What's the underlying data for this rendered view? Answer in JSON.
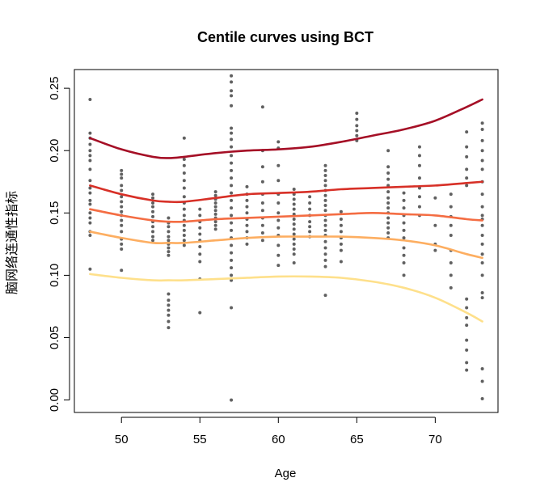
{
  "chart_data": {
    "type": "scatter",
    "title": "Centile curves using BCT",
    "xlabel": "Age",
    "ylabel": "脑网络连通性指标",
    "xlim": [
      47,
      74
    ],
    "ylim": [
      -0.01,
      0.265
    ],
    "x_ticks": [
      "50",
      "55",
      "60",
      "65",
      "70"
    ],
    "y_ticks": [
      "0.00",
      "0.05",
      "0.10",
      "0.15",
      "0.20",
      "0.25"
    ],
    "point_color": "#606060",
    "grid": false,
    "legend": "none",
    "points": [
      {
        "x": 48,
        "y": 0.241
      },
      {
        "x": 48,
        "y": 0.214
      },
      {
        "x": 48,
        "y": 0.21
      },
      {
        "x": 48,
        "y": 0.205
      },
      {
        "x": 48,
        "y": 0.2
      },
      {
        "x": 48,
        "y": 0.196
      },
      {
        "x": 48,
        "y": 0.192
      },
      {
        "x": 48,
        "y": 0.185
      },
      {
        "x": 48,
        "y": 0.176
      },
      {
        "x": 48,
        "y": 0.17
      },
      {
        "x": 48,
        "y": 0.166
      },
      {
        "x": 48,
        "y": 0.16
      },
      {
        "x": 48,
        "y": 0.157
      },
      {
        "x": 48,
        "y": 0.15
      },
      {
        "x": 48,
        "y": 0.146
      },
      {
        "x": 48,
        "y": 0.142
      },
      {
        "x": 48,
        "y": 0.135
      },
      {
        "x": 48,
        "y": 0.132
      },
      {
        "x": 48,
        "y": 0.105
      },
      {
        "x": 50,
        "y": 0.184
      },
      {
        "x": 50,
        "y": 0.181
      },
      {
        "x": 50,
        "y": 0.178
      },
      {
        "x": 50,
        "y": 0.172
      },
      {
        "x": 50,
        "y": 0.168
      },
      {
        "x": 50,
        "y": 0.163
      },
      {
        "x": 50,
        "y": 0.159
      },
      {
        "x": 50,
        "y": 0.155
      },
      {
        "x": 50,
        "y": 0.151
      },
      {
        "x": 50,
        "y": 0.148
      },
      {
        "x": 50,
        "y": 0.144
      },
      {
        "x": 50,
        "y": 0.14
      },
      {
        "x": 50,
        "y": 0.135
      },
      {
        "x": 50,
        "y": 0.129
      },
      {
        "x": 50,
        "y": 0.125
      },
      {
        "x": 50,
        "y": 0.121
      },
      {
        "x": 50,
        "y": 0.104
      },
      {
        "x": 52,
        "y": 0.165
      },
      {
        "x": 52,
        "y": 0.162
      },
      {
        "x": 52,
        "y": 0.158
      },
      {
        "x": 52,
        "y": 0.155
      },
      {
        "x": 52,
        "y": 0.151
      },
      {
        "x": 52,
        "y": 0.147
      },
      {
        "x": 52,
        "y": 0.143
      },
      {
        "x": 52,
        "y": 0.139
      },
      {
        "x": 52,
        "y": 0.135
      },
      {
        "x": 52,
        "y": 0.131
      },
      {
        "x": 52,
        "y": 0.128
      },
      {
        "x": 53,
        "y": 0.146
      },
      {
        "x": 53,
        "y": 0.142
      },
      {
        "x": 53,
        "y": 0.139
      },
      {
        "x": 53,
        "y": 0.135
      },
      {
        "x": 53,
        "y": 0.131
      },
      {
        "x": 53,
        "y": 0.128
      },
      {
        "x": 53,
        "y": 0.125
      },
      {
        "x": 53,
        "y": 0.122
      },
      {
        "x": 53,
        "y": 0.119
      },
      {
        "x": 53,
        "y": 0.116
      },
      {
        "x": 53,
        "y": 0.085
      },
      {
        "x": 53,
        "y": 0.08
      },
      {
        "x": 53,
        "y": 0.076
      },
      {
        "x": 53,
        "y": 0.072
      },
      {
        "x": 53,
        "y": 0.068
      },
      {
        "x": 53,
        "y": 0.063
      },
      {
        "x": 53,
        "y": 0.058
      },
      {
        "x": 54,
        "y": 0.21
      },
      {
        "x": 54,
        "y": 0.193
      },
      {
        "x": 54,
        "y": 0.188
      },
      {
        "x": 54,
        "y": 0.182
      },
      {
        "x": 54,
        "y": 0.176
      },
      {
        "x": 54,
        "y": 0.17
      },
      {
        "x": 54,
        "y": 0.163
      },
      {
        "x": 54,
        "y": 0.158
      },
      {
        "x": 54,
        "y": 0.153
      },
      {
        "x": 54,
        "y": 0.148
      },
      {
        "x": 54,
        "y": 0.144
      },
      {
        "x": 54,
        "y": 0.14
      },
      {
        "x": 54,
        "y": 0.136
      },
      {
        "x": 54,
        "y": 0.132
      },
      {
        "x": 54,
        "y": 0.128
      },
      {
        "x": 54,
        "y": 0.124
      },
      {
        "x": 55,
        "y": 0.153
      },
      {
        "x": 55,
        "y": 0.148
      },
      {
        "x": 55,
        "y": 0.143
      },
      {
        "x": 55,
        "y": 0.138
      },
      {
        "x": 55,
        "y": 0.133
      },
      {
        "x": 55,
        "y": 0.128
      },
      {
        "x": 55,
        "y": 0.123
      },
      {
        "x": 55,
        "y": 0.117
      },
      {
        "x": 55,
        "y": 0.111
      },
      {
        "x": 55,
        "y": 0.097
      },
      {
        "x": 55,
        "y": 0.07
      },
      {
        "x": 56,
        "y": 0.167
      },
      {
        "x": 56,
        "y": 0.164
      },
      {
        "x": 56,
        "y": 0.161
      },
      {
        "x": 56,
        "y": 0.158
      },
      {
        "x": 56,
        "y": 0.155
      },
      {
        "x": 56,
        "y": 0.152
      },
      {
        "x": 56,
        "y": 0.149
      },
      {
        "x": 56,
        "y": 0.146
      },
      {
        "x": 56,
        "y": 0.143
      },
      {
        "x": 56,
        "y": 0.14
      },
      {
        "x": 56,
        "y": 0.137
      },
      {
        "x": 57,
        "y": 0.26
      },
      {
        "x": 57,
        "y": 0.255
      },
      {
        "x": 57,
        "y": 0.248
      },
      {
        "x": 57,
        "y": 0.244
      },
      {
        "x": 57,
        "y": 0.236
      },
      {
        "x": 57,
        "y": 0.218
      },
      {
        "x": 57,
        "y": 0.214
      },
      {
        "x": 57,
        "y": 0.209
      },
      {
        "x": 57,
        "y": 0.203
      },
      {
        "x": 57,
        "y": 0.196
      },
      {
        "x": 57,
        "y": 0.19
      },
      {
        "x": 57,
        "y": 0.184
      },
      {
        "x": 57,
        "y": 0.178
      },
      {
        "x": 57,
        "y": 0.172
      },
      {
        "x": 57,
        "y": 0.166
      },
      {
        "x": 57,
        "y": 0.16
      },
      {
        "x": 57,
        "y": 0.154
      },
      {
        "x": 57,
        "y": 0.148
      },
      {
        "x": 57,
        "y": 0.142
      },
      {
        "x": 57,
        "y": 0.136
      },
      {
        "x": 57,
        "y": 0.13
      },
      {
        "x": 57,
        "y": 0.124
      },
      {
        "x": 57,
        "y": 0.118
      },
      {
        "x": 57,
        "y": 0.112
      },
      {
        "x": 57,
        "y": 0.106
      },
      {
        "x": 57,
        "y": 0.1
      },
      {
        "x": 57,
        "y": 0.096
      },
      {
        "x": 57,
        "y": 0.074
      },
      {
        "x": 57,
        "y": 0.0
      },
      {
        "x": 58,
        "y": 0.171
      },
      {
        "x": 58,
        "y": 0.165
      },
      {
        "x": 58,
        "y": 0.16
      },
      {
        "x": 58,
        "y": 0.155
      },
      {
        "x": 58,
        "y": 0.15
      },
      {
        "x": 58,
        "y": 0.145
      },
      {
        "x": 58,
        "y": 0.14
      },
      {
        "x": 58,
        "y": 0.135
      },
      {
        "x": 58,
        "y": 0.13
      },
      {
        "x": 58,
        "y": 0.125
      },
      {
        "x": 59,
        "y": 0.235
      },
      {
        "x": 59,
        "y": 0.2
      },
      {
        "x": 59,
        "y": 0.187
      },
      {
        "x": 59,
        "y": 0.175
      },
      {
        "x": 59,
        "y": 0.165
      },
      {
        "x": 59,
        "y": 0.158
      },
      {
        "x": 59,
        "y": 0.152
      },
      {
        "x": 59,
        "y": 0.146
      },
      {
        "x": 59,
        "y": 0.14
      },
      {
        "x": 59,
        "y": 0.134
      },
      {
        "x": 59,
        "y": 0.128
      },
      {
        "x": 60,
        "y": 0.207
      },
      {
        "x": 60,
        "y": 0.202
      },
      {
        "x": 60,
        "y": 0.188
      },
      {
        "x": 60,
        "y": 0.176
      },
      {
        "x": 60,
        "y": 0.165
      },
      {
        "x": 60,
        "y": 0.158
      },
      {
        "x": 60,
        "y": 0.15
      },
      {
        "x": 60,
        "y": 0.144
      },
      {
        "x": 60,
        "y": 0.138
      },
      {
        "x": 60,
        "y": 0.132
      },
      {
        "x": 60,
        "y": 0.124
      },
      {
        "x": 60,
        "y": 0.116
      },
      {
        "x": 60,
        "y": 0.108
      },
      {
        "x": 61,
        "y": 0.169
      },
      {
        "x": 61,
        "y": 0.165
      },
      {
        "x": 61,
        "y": 0.161
      },
      {
        "x": 61,
        "y": 0.157
      },
      {
        "x": 61,
        "y": 0.153
      },
      {
        "x": 61,
        "y": 0.149
      },
      {
        "x": 61,
        "y": 0.145
      },
      {
        "x": 61,
        "y": 0.141
      },
      {
        "x": 61,
        "y": 0.137
      },
      {
        "x": 61,
        "y": 0.133
      },
      {
        "x": 61,
        "y": 0.129
      },
      {
        "x": 61,
        "y": 0.125
      },
      {
        "x": 61,
        "y": 0.121
      },
      {
        "x": 61,
        "y": 0.117
      },
      {
        "x": 61,
        "y": 0.11
      },
      {
        "x": 62,
        "y": 0.163
      },
      {
        "x": 62,
        "y": 0.158
      },
      {
        "x": 62,
        "y": 0.153
      },
      {
        "x": 62,
        "y": 0.148
      },
      {
        "x": 62,
        "y": 0.143
      },
      {
        "x": 62,
        "y": 0.139
      },
      {
        "x": 62,
        "y": 0.135
      },
      {
        "x": 62,
        "y": 0.131
      },
      {
        "x": 63,
        "y": 0.188
      },
      {
        "x": 63,
        "y": 0.184
      },
      {
        "x": 63,
        "y": 0.18
      },
      {
        "x": 63,
        "y": 0.176
      },
      {
        "x": 63,
        "y": 0.172
      },
      {
        "x": 63,
        "y": 0.168
      },
      {
        "x": 63,
        "y": 0.164
      },
      {
        "x": 63,
        "y": 0.16
      },
      {
        "x": 63,
        "y": 0.156
      },
      {
        "x": 63,
        "y": 0.152
      },
      {
        "x": 63,
        "y": 0.148
      },
      {
        "x": 63,
        "y": 0.144
      },
      {
        "x": 63,
        "y": 0.14
      },
      {
        "x": 63,
        "y": 0.136
      },
      {
        "x": 63,
        "y": 0.132
      },
      {
        "x": 63,
        "y": 0.127
      },
      {
        "x": 63,
        "y": 0.122
      },
      {
        "x": 63,
        "y": 0.117
      },
      {
        "x": 63,
        "y": 0.112
      },
      {
        "x": 63,
        "y": 0.107
      },
      {
        "x": 63,
        "y": 0.084
      },
      {
        "x": 64,
        "y": 0.151
      },
      {
        "x": 64,
        "y": 0.145
      },
      {
        "x": 64,
        "y": 0.14
      },
      {
        "x": 64,
        "y": 0.135
      },
      {
        "x": 64,
        "y": 0.13
      },
      {
        "x": 64,
        "y": 0.125
      },
      {
        "x": 64,
        "y": 0.12
      },
      {
        "x": 64,
        "y": 0.111
      },
      {
        "x": 65,
        "y": 0.23
      },
      {
        "x": 65,
        "y": 0.225
      },
      {
        "x": 65,
        "y": 0.22
      },
      {
        "x": 65,
        "y": 0.216
      },
      {
        "x": 65,
        "y": 0.212
      },
      {
        "x": 65,
        "y": 0.208
      },
      {
        "x": 67,
        "y": 0.2
      },
      {
        "x": 67,
        "y": 0.187
      },
      {
        "x": 67,
        "y": 0.182
      },
      {
        "x": 67,
        "y": 0.177
      },
      {
        "x": 67,
        "y": 0.172
      },
      {
        "x": 67,
        "y": 0.167
      },
      {
        "x": 67,
        "y": 0.162
      },
      {
        "x": 67,
        "y": 0.158
      },
      {
        "x": 67,
        "y": 0.154
      },
      {
        "x": 67,
        "y": 0.15
      },
      {
        "x": 67,
        "y": 0.146
      },
      {
        "x": 67,
        "y": 0.142
      },
      {
        "x": 67,
        "y": 0.138
      },
      {
        "x": 67,
        "y": 0.134
      },
      {
        "x": 67,
        "y": 0.13
      },
      {
        "x": 68,
        "y": 0.166
      },
      {
        "x": 68,
        "y": 0.16
      },
      {
        "x": 68,
        "y": 0.154
      },
      {
        "x": 68,
        "y": 0.148
      },
      {
        "x": 68,
        "y": 0.142
      },
      {
        "x": 68,
        "y": 0.136
      },
      {
        "x": 68,
        "y": 0.13
      },
      {
        "x": 68,
        "y": 0.122
      },
      {
        "x": 68,
        "y": 0.116
      },
      {
        "x": 68,
        "y": 0.11
      },
      {
        "x": 68,
        "y": 0.1
      },
      {
        "x": 69,
        "y": 0.203
      },
      {
        "x": 69,
        "y": 0.196
      },
      {
        "x": 69,
        "y": 0.188
      },
      {
        "x": 69,
        "y": 0.178
      },
      {
        "x": 69,
        "y": 0.17
      },
      {
        "x": 69,
        "y": 0.163
      },
      {
        "x": 69,
        "y": 0.155
      },
      {
        "x": 69,
        "y": 0.148
      },
      {
        "x": 70,
        "y": 0.162
      },
      {
        "x": 70,
        "y": 0.14
      },
      {
        "x": 70,
        "y": 0.125
      },
      {
        "x": 70,
        "y": 0.12
      },
      {
        "x": 71,
        "y": 0.165
      },
      {
        "x": 71,
        "y": 0.155
      },
      {
        "x": 71,
        "y": 0.147
      },
      {
        "x": 71,
        "y": 0.14
      },
      {
        "x": 71,
        "y": 0.132
      },
      {
        "x": 71,
        "y": 0.12
      },
      {
        "x": 71,
        "y": 0.11
      },
      {
        "x": 71,
        "y": 0.1
      },
      {
        "x": 71,
        "y": 0.09
      },
      {
        "x": 72,
        "y": 0.215
      },
      {
        "x": 72,
        "y": 0.203
      },
      {
        "x": 72,
        "y": 0.195
      },
      {
        "x": 72,
        "y": 0.185
      },
      {
        "x": 72,
        "y": 0.178
      },
      {
        "x": 72,
        "y": 0.172
      },
      {
        "x": 72,
        "y": 0.081
      },
      {
        "x": 72,
        "y": 0.074
      },
      {
        "x": 72,
        "y": 0.066
      },
      {
        "x": 72,
        "y": 0.06
      },
      {
        "x": 72,
        "y": 0.048
      },
      {
        "x": 72,
        "y": 0.04
      },
      {
        "x": 72,
        "y": 0.03
      },
      {
        "x": 72,
        "y": 0.024
      },
      {
        "x": 73,
        "y": 0.222
      },
      {
        "x": 73,
        "y": 0.217
      },
      {
        "x": 73,
        "y": 0.208
      },
      {
        "x": 73,
        "y": 0.2
      },
      {
        "x": 73,
        "y": 0.192
      },
      {
        "x": 73,
        "y": 0.185
      },
      {
        "x": 73,
        "y": 0.175
      },
      {
        "x": 73,
        "y": 0.165
      },
      {
        "x": 73,
        "y": 0.155
      },
      {
        "x": 73,
        "y": 0.148
      },
      {
        "x": 73,
        "y": 0.145
      },
      {
        "x": 73,
        "y": 0.14
      },
      {
        "x": 73,
        "y": 0.132
      },
      {
        "x": 73,
        "y": 0.125
      },
      {
        "x": 73,
        "y": 0.117
      },
      {
        "x": 73,
        "y": 0.11
      },
      {
        "x": 73,
        "y": 0.1
      },
      {
        "x": 73,
        "y": 0.086
      },
      {
        "x": 73,
        "y": 0.082
      },
      {
        "x": 73,
        "y": 0.025
      },
      {
        "x": 73,
        "y": 0.015
      },
      {
        "x": 73,
        "y": 0.001
      }
    ],
    "series": [
      {
        "color": "#a50f26",
        "x": [
          48,
          50,
          52,
          53,
          54,
          56,
          58,
          60,
          62,
          64,
          66,
          68,
          70,
          72,
          73
        ],
        "y": [
          0.21,
          0.201,
          0.195,
          0.194,
          0.195,
          0.198,
          0.2,
          0.201,
          0.203,
          0.207,
          0.212,
          0.217,
          0.224,
          0.235,
          0.241
        ]
      },
      {
        "color": "#d73027",
        "x": [
          48,
          50,
          52,
          53,
          54,
          56,
          58,
          60,
          62,
          64,
          66,
          68,
          70,
          72,
          73
        ],
        "y": [
          0.172,
          0.165,
          0.16,
          0.159,
          0.159,
          0.162,
          0.165,
          0.166,
          0.167,
          0.169,
          0.17,
          0.171,
          0.172,
          0.174,
          0.175
        ]
      },
      {
        "color": "#f46d43",
        "x": [
          48,
          50,
          52,
          53,
          54,
          56,
          58,
          60,
          62,
          64,
          66,
          68,
          70,
          72,
          73
        ],
        "y": [
          0.153,
          0.148,
          0.144,
          0.143,
          0.143,
          0.145,
          0.146,
          0.147,
          0.148,
          0.149,
          0.15,
          0.149,
          0.148,
          0.145,
          0.144
        ]
      },
      {
        "color": "#fdae61",
        "x": [
          48,
          50,
          52,
          53,
          54,
          56,
          58,
          60,
          62,
          64,
          66,
          68,
          70,
          72,
          73
        ],
        "y": [
          0.135,
          0.13,
          0.126,
          0.126,
          0.126,
          0.128,
          0.13,
          0.131,
          0.131,
          0.131,
          0.13,
          0.128,
          0.124,
          0.117,
          0.114
        ]
      },
      {
        "color": "#fee08b",
        "x": [
          48,
          50,
          52,
          53,
          54,
          56,
          58,
          60,
          62,
          64,
          66,
          68,
          70,
          72,
          73
        ],
        "y": [
          0.101,
          0.098,
          0.096,
          0.096,
          0.096,
          0.097,
          0.098,
          0.099,
          0.099,
          0.098,
          0.095,
          0.09,
          0.082,
          0.07,
          0.063
        ]
      }
    ]
  }
}
